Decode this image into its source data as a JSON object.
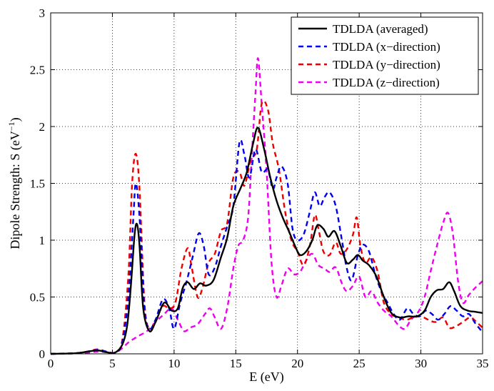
{
  "chart_data": {
    "type": "line",
    "title": "",
    "xlabel": "E (eV)",
    "ylabel": {
      "main": "Dipole Strength: S (eV",
      "sup": "−1",
      "close": ")"
    },
    "xlim": [
      0,
      35
    ],
    "ylim": [
      0,
      3
    ],
    "xticks": [
      0,
      5,
      10,
      15,
      20,
      25,
      30,
      35
    ],
    "yticks": [
      0,
      0.5,
      1,
      1.5,
      2,
      2.5,
      3
    ],
    "xtick_labels": [
      "0",
      "5",
      "10",
      "15",
      "20",
      "25",
      "30",
      "35"
    ],
    "ytick_labels": [
      "0",
      "0.5",
      "1",
      "1.5",
      "2",
      "2.5",
      "3"
    ],
    "grid": true,
    "legend_position": "top-right",
    "series": [
      {
        "name": "TDLDA (averaged)",
        "color": "#000000",
        "dash": "solid",
        "points": [
          [
            0,
            0
          ],
          [
            2,
            0.005
          ],
          [
            3,
            0.02
          ],
          [
            3.8,
            0.03
          ],
          [
            4.5,
            0.015
          ],
          [
            5.2,
            0.01
          ],
          [
            5.8,
            0.08
          ],
          [
            6.2,
            0.25
          ],
          [
            6.5,
            0.6
          ],
          [
            6.8,
            1.05
          ],
          [
            7,
            1.14
          ],
          [
            7.2,
            0.95
          ],
          [
            7.5,
            0.4
          ],
          [
            8,
            0.2
          ],
          [
            8.5,
            0.28
          ],
          [
            9.2,
            0.45
          ],
          [
            9.8,
            0.38
          ],
          [
            10.3,
            0.4
          ],
          [
            10.7,
            0.58
          ],
          [
            11.1,
            0.63
          ],
          [
            11.6,
            0.57
          ],
          [
            12.1,
            0.62
          ],
          [
            12.6,
            0.6
          ],
          [
            13.2,
            0.65
          ],
          [
            13.8,
            0.85
          ],
          [
            14.3,
            1.02
          ],
          [
            14.8,
            1.3
          ],
          [
            15.4,
            1.46
          ],
          [
            15.9,
            1.6
          ],
          [
            16.4,
            1.85
          ],
          [
            16.8,
            1.99
          ],
          [
            17.3,
            1.8
          ],
          [
            17.8,
            1.55
          ],
          [
            18.3,
            1.35
          ],
          [
            18.8,
            1.2
          ],
          [
            19.3,
            1.08
          ],
          [
            19.8,
            0.95
          ],
          [
            20.2,
            0.87
          ],
          [
            20.7,
            0.9
          ],
          [
            21.2,
            1.0
          ],
          [
            21.6,
            1.13
          ],
          [
            22.1,
            1.1
          ],
          [
            22.5,
            1.03
          ],
          [
            23,
            1.08
          ],
          [
            23.5,
            0.95
          ],
          [
            24,
            0.8
          ],
          [
            24.5,
            0.83
          ],
          [
            24.9,
            0.87
          ],
          [
            25.3,
            0.82
          ],
          [
            25.8,
            0.78
          ],
          [
            26.4,
            0.68
          ],
          [
            27,
            0.5
          ],
          [
            27.6,
            0.36
          ],
          [
            28.3,
            0.32
          ],
          [
            29,
            0.33
          ],
          [
            29.7,
            0.33
          ],
          [
            30.3,
            0.38
          ],
          [
            30.8,
            0.5
          ],
          [
            31.3,
            0.56
          ],
          [
            31.8,
            0.57
          ],
          [
            32.3,
            0.63
          ],
          [
            32.7,
            0.55
          ],
          [
            33.2,
            0.42
          ],
          [
            33.8,
            0.38
          ],
          [
            34.4,
            0.37
          ],
          [
            35,
            0.36
          ]
        ]
      },
      {
        "name": "TDLDA (x−direction)",
        "color": "#0000ee",
        "dash": "7,5",
        "points": [
          [
            0,
            0
          ],
          [
            2,
            0.005
          ],
          [
            3,
            0.02
          ],
          [
            3.8,
            0.035
          ],
          [
            4.5,
            0.02
          ],
          [
            5.2,
            0.01
          ],
          [
            5.8,
            0.1
          ],
          [
            6.3,
            0.5
          ],
          [
            6.7,
            1.2
          ],
          [
            6.9,
            1.5
          ],
          [
            7.2,
            1.2
          ],
          [
            7.6,
            0.4
          ],
          [
            8,
            0.22
          ],
          [
            8.5,
            0.3
          ],
          [
            9.1,
            0.48
          ],
          [
            9.6,
            0.4
          ],
          [
            10,
            0.22
          ],
          [
            10.5,
            0.45
          ],
          [
            11,
            0.63
          ],
          [
            11.5,
            0.85
          ],
          [
            12,
            1.06
          ],
          [
            12.4,
            0.95
          ],
          [
            12.8,
            0.7
          ],
          [
            13.3,
            0.76
          ],
          [
            13.8,
            0.95
          ],
          [
            14.3,
            1.12
          ],
          [
            14.8,
            1.3
          ],
          [
            15.3,
            1.86
          ],
          [
            15.7,
            1.75
          ],
          [
            16.1,
            1.55
          ],
          [
            16.6,
            1.8
          ],
          [
            17.1,
            1.6
          ],
          [
            17.6,
            1.62
          ],
          [
            18,
            1.45
          ],
          [
            18.3,
            1.55
          ],
          [
            18.7,
            1.65
          ],
          [
            19.2,
            1.5
          ],
          [
            19.6,
            1.1
          ],
          [
            20,
            1.0
          ],
          [
            20.5,
            1.05
          ],
          [
            21,
            1.25
          ],
          [
            21.4,
            1.42
          ],
          [
            21.8,
            1.3
          ],
          [
            22.2,
            1.38
          ],
          [
            22.6,
            1.42
          ],
          [
            23.1,
            1.3
          ],
          [
            23.6,
            1.0
          ],
          [
            24,
            0.75
          ],
          [
            24.4,
            0.65
          ],
          [
            24.9,
            0.87
          ],
          [
            25.3,
            0.96
          ],
          [
            25.8,
            0.9
          ],
          [
            26.3,
            0.7
          ],
          [
            26.8,
            0.55
          ],
          [
            27.3,
            0.45
          ],
          [
            27.8,
            0.35
          ],
          [
            28.3,
            0.3
          ],
          [
            28.9,
            0.4
          ],
          [
            29.4,
            0.35
          ],
          [
            29.9,
            0.33
          ],
          [
            30.4,
            0.38
          ],
          [
            30.9,
            0.35
          ],
          [
            31.4,
            0.3
          ],
          [
            31.9,
            0.35
          ],
          [
            32.4,
            0.42
          ],
          [
            32.9,
            0.38
          ],
          [
            33.4,
            0.33
          ],
          [
            33.9,
            0.35
          ],
          [
            34.4,
            0.27
          ],
          [
            35,
            0.19
          ]
        ]
      },
      {
        "name": "TDLDA (y−direction)",
        "color": "#ee0000",
        "dash": "7,5",
        "points": [
          [
            0,
            0
          ],
          [
            2,
            0.005
          ],
          [
            3,
            0.02
          ],
          [
            3.8,
            0.04
          ],
          [
            4.5,
            0.02
          ],
          [
            5.2,
            0.01
          ],
          [
            5.8,
            0.12
          ],
          [
            6.3,
            0.7
          ],
          [
            6.6,
            1.5
          ],
          [
            6.9,
            1.76
          ],
          [
            7.2,
            1.45
          ],
          [
            7.6,
            0.45
          ],
          [
            8,
            0.22
          ],
          [
            8.5,
            0.3
          ],
          [
            9.1,
            0.42
          ],
          [
            9.6,
            0.4
          ],
          [
            10.1,
            0.45
          ],
          [
            10.6,
            0.75
          ],
          [
            11.1,
            0.93
          ],
          [
            11.4,
            0.78
          ],
          [
            11.9,
            0.5
          ],
          [
            12.3,
            0.58
          ],
          [
            12.8,
            0.8
          ],
          [
            13.3,
            0.88
          ],
          [
            13.8,
            1.08
          ],
          [
            14.3,
            1.15
          ],
          [
            14.8,
            1.55
          ],
          [
            15.3,
            1.6
          ],
          [
            15.7,
            1.48
          ],
          [
            16.2,
            1.7
          ],
          [
            16.7,
            1.8
          ],
          [
            17.1,
            2.2
          ],
          [
            17.6,
            2.15
          ],
          [
            18,
            1.85
          ],
          [
            18.5,
            1.62
          ],
          [
            19,
            1.25
          ],
          [
            19.5,
            1.0
          ],
          [
            20,
            0.9
          ],
          [
            20.5,
            0.78
          ],
          [
            21,
            0.95
          ],
          [
            21.4,
            1.22
          ],
          [
            21.7,
            1.1
          ],
          [
            22.1,
            0.9
          ],
          [
            22.6,
            0.87
          ],
          [
            23.1,
            0.98
          ],
          [
            23.5,
            0.88
          ],
          [
            24,
            0.92
          ],
          [
            24.5,
            1.05
          ],
          [
            24.8,
            1.2
          ],
          [
            25.1,
            0.95
          ],
          [
            25.5,
            0.8
          ],
          [
            26,
            0.85
          ],
          [
            26.5,
            0.72
          ],
          [
            27,
            0.45
          ],
          [
            27.6,
            0.35
          ],
          [
            28.2,
            0.32
          ],
          [
            28.8,
            0.3
          ],
          [
            29.4,
            0.32
          ],
          [
            30,
            0.33
          ],
          [
            30.6,
            0.3
          ],
          [
            31.2,
            0.28
          ],
          [
            31.8,
            0.32
          ],
          [
            32.3,
            0.23
          ],
          [
            32.8,
            0.24
          ],
          [
            33.4,
            0.28
          ],
          [
            34,
            0.32
          ],
          [
            34.5,
            0.28
          ],
          [
            35,
            0.23
          ]
        ]
      },
      {
        "name": "TDLDA (z−direction)",
        "color": "#ee00ee",
        "dash": "7,5",
        "points": [
          [
            0,
            0
          ],
          [
            2,
            0.005
          ],
          [
            3,
            0.01
          ],
          [
            3.8,
            0.02
          ],
          [
            4.5,
            0.015
          ],
          [
            5.2,
            0.01
          ],
          [
            5.8,
            0.05
          ],
          [
            6.3,
            0.1
          ],
          [
            7,
            0.15
          ],
          [
            7.8,
            0.2
          ],
          [
            8.5,
            0.28
          ],
          [
            9.2,
            0.35
          ],
          [
            9.8,
            0.4
          ],
          [
            10.3,
            0.3
          ],
          [
            10.8,
            0.2
          ],
          [
            11.3,
            0.23
          ],
          [
            11.9,
            0.26
          ],
          [
            12.5,
            0.35
          ],
          [
            12.9,
            0.4
          ],
          [
            13.3,
            0.32
          ],
          [
            13.8,
            0.22
          ],
          [
            14.3,
            0.4
          ],
          [
            14.8,
            0.75
          ],
          [
            15.2,
            0.95
          ],
          [
            15.6,
            1.0
          ],
          [
            16,
            1.2
          ],
          [
            16.3,
            1.75
          ],
          [
            16.6,
            2.3
          ],
          [
            16.8,
            2.6
          ],
          [
            17.1,
            2.2
          ],
          [
            17.5,
            1.6
          ],
          [
            17.9,
            0.8
          ],
          [
            18.3,
            0.5
          ],
          [
            18.7,
            0.6
          ],
          [
            19.2,
            0.75
          ],
          [
            19.7,
            0.7
          ],
          [
            20.2,
            0.72
          ],
          [
            20.7,
            0.82
          ],
          [
            21.2,
            0.88
          ],
          [
            21.7,
            0.78
          ],
          [
            22.2,
            0.75
          ],
          [
            22.6,
            0.72
          ],
          [
            23.1,
            0.76
          ],
          [
            23.6,
            0.62
          ],
          [
            24,
            0.55
          ],
          [
            24.5,
            0.6
          ],
          [
            25,
            0.68
          ],
          [
            25.5,
            0.5
          ],
          [
            26,
            0.55
          ],
          [
            26.5,
            0.45
          ],
          [
            27,
            0.38
          ],
          [
            27.6,
            0.33
          ],
          [
            28.2,
            0.25
          ],
          [
            28.7,
            0.22
          ],
          [
            29.2,
            0.3
          ],
          [
            29.8,
            0.37
          ],
          [
            30.3,
            0.5
          ],
          [
            30.8,
            0.73
          ],
          [
            31.3,
            0.95
          ],
          [
            31.8,
            1.15
          ],
          [
            32.2,
            1.24
          ],
          [
            32.6,
            1.05
          ],
          [
            33,
            0.65
          ],
          [
            33.4,
            0.45
          ],
          [
            33.9,
            0.52
          ],
          [
            34.4,
            0.58
          ],
          [
            35,
            0.64
          ]
        ]
      }
    ]
  }
}
